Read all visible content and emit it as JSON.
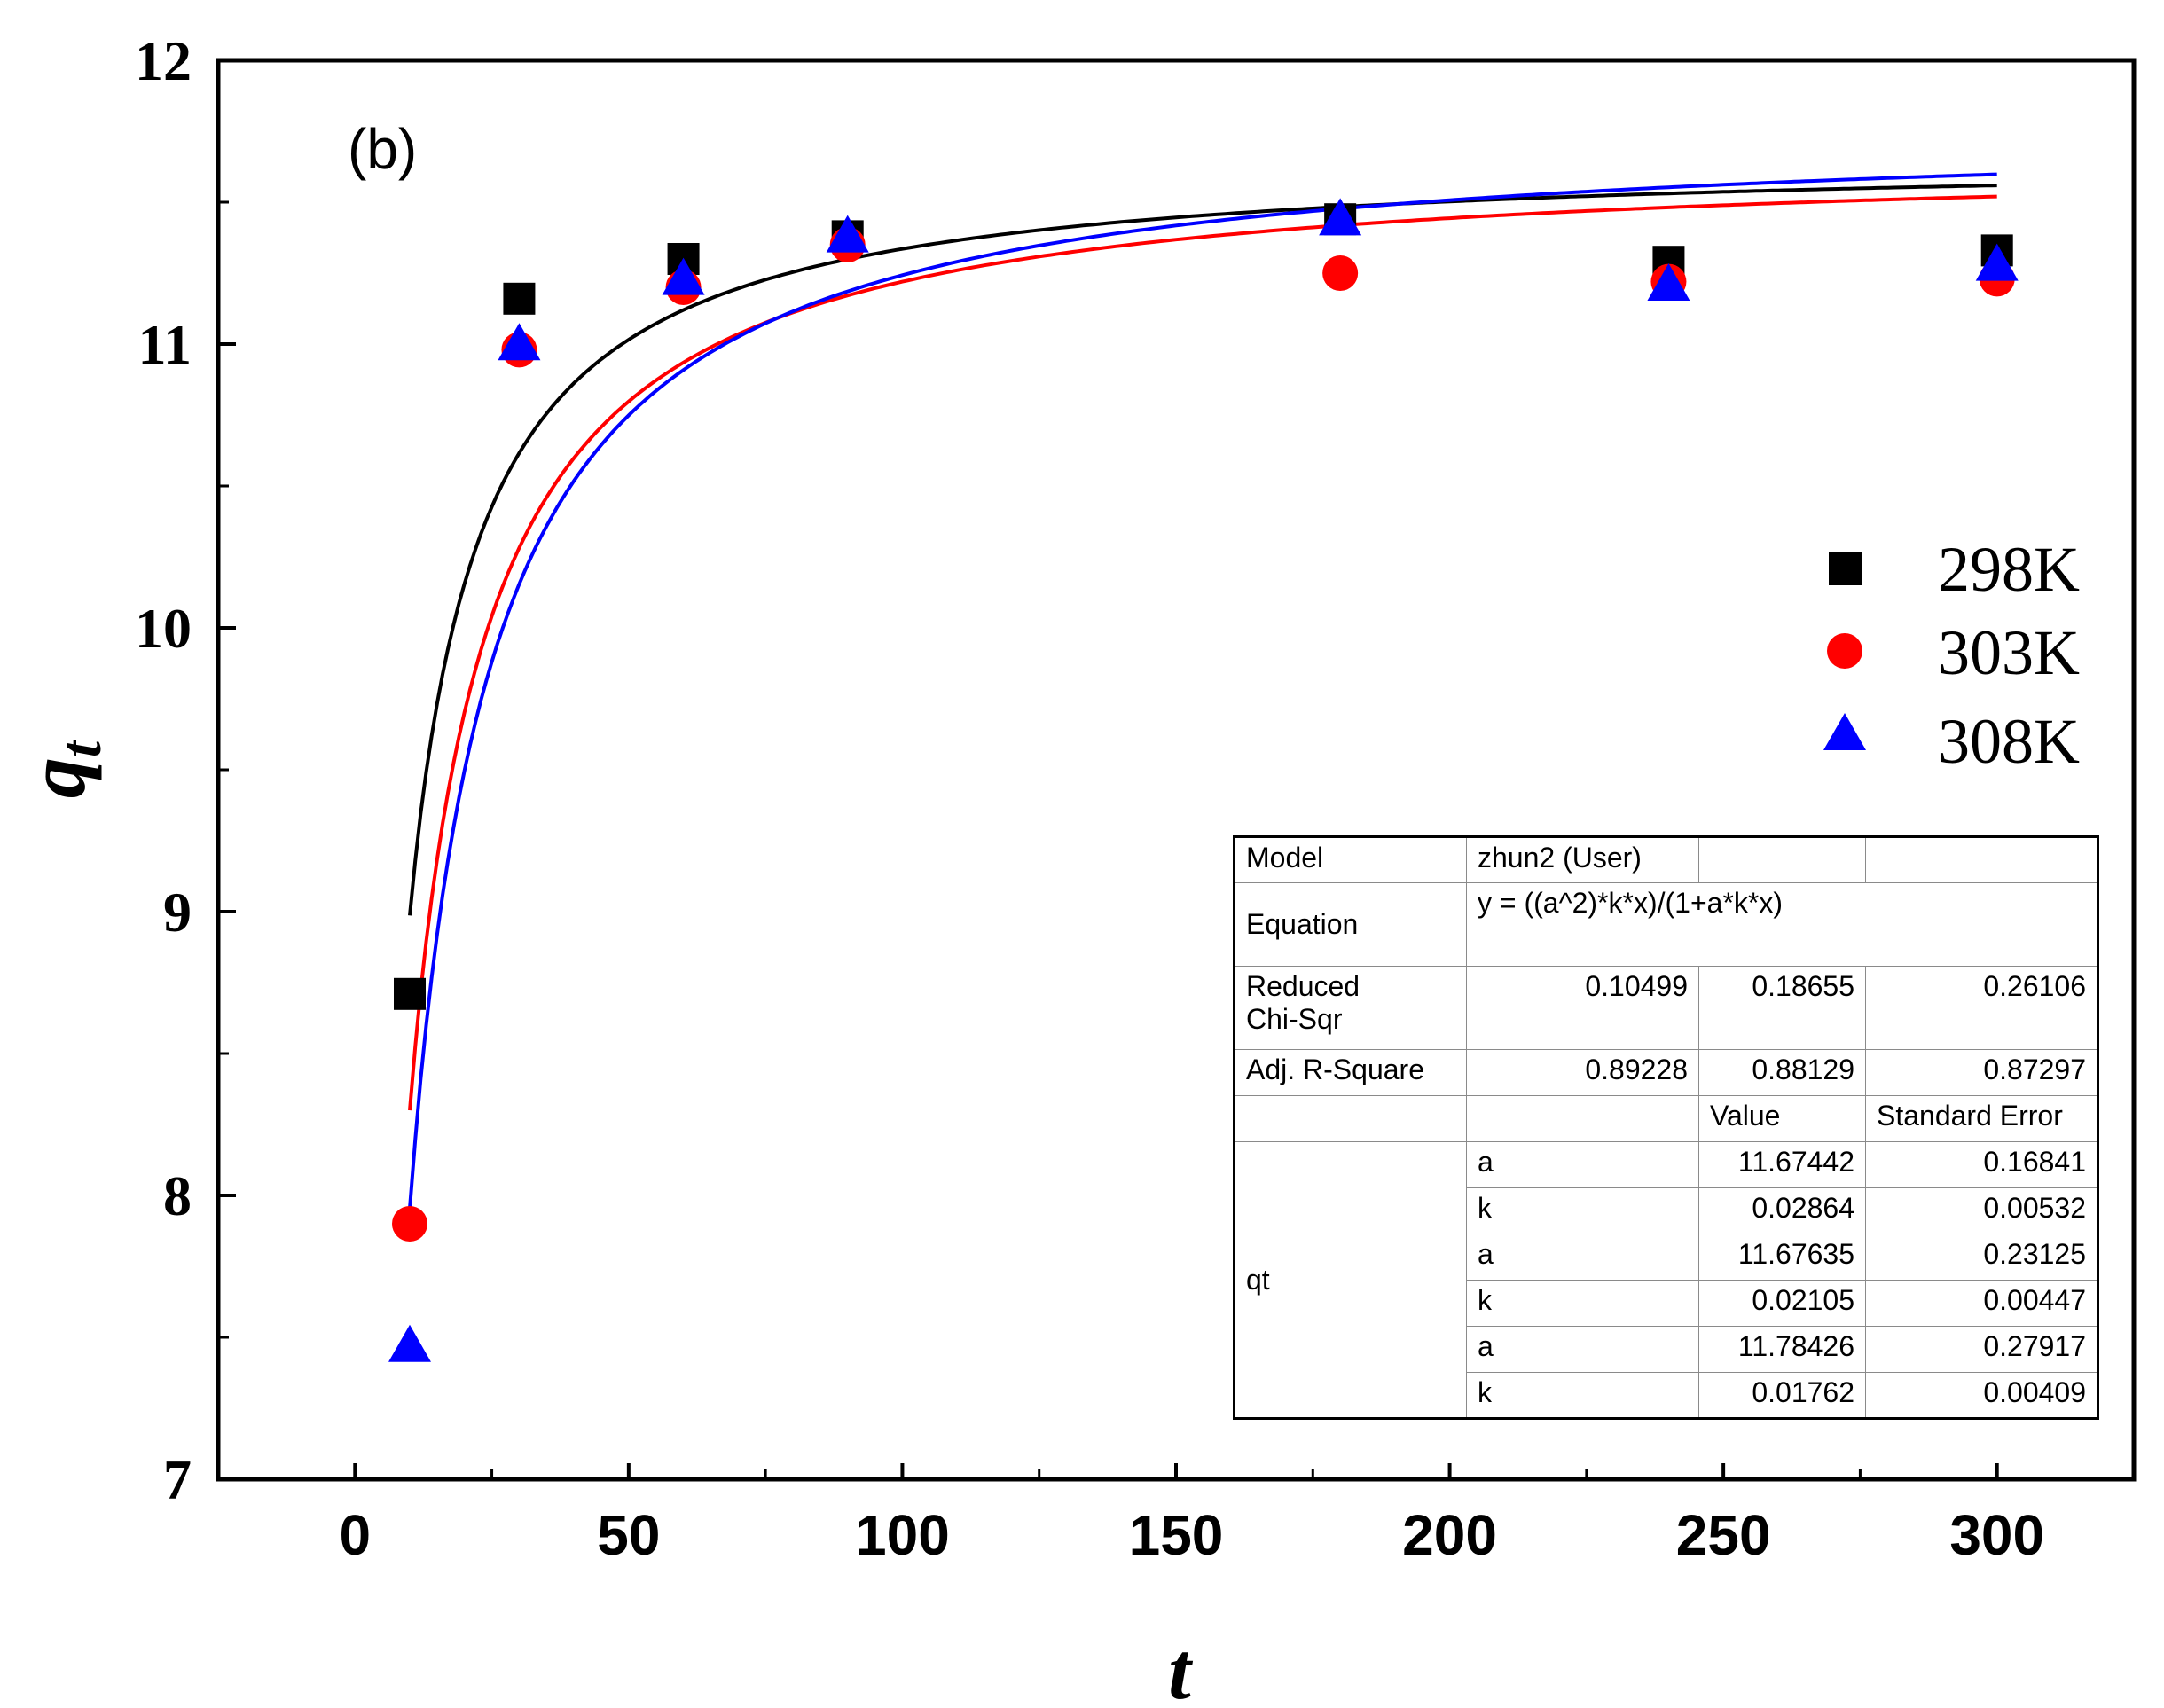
{
  "chart_data": {
    "type": "scatter",
    "panel_label": "(b)",
    "xlabel": "t",
    "ylabel_main": "q",
    "ylabel_sub": "t",
    "xlim": [
      -25,
      325
    ],
    "ylim": [
      7,
      12
    ],
    "xticks": [
      0,
      50,
      100,
      150,
      200,
      250,
      300
    ],
    "xtick_labels": [
      "0",
      "50",
      "100",
      "150",
      "200",
      "250",
      "300"
    ],
    "yticks": [
      7,
      8,
      9,
      10,
      11,
      12
    ],
    "ytick_labels": [
      "7",
      "8",
      "9",
      "10",
      "11",
      "12"
    ],
    "legend_position": "right",
    "series": [
      {
        "name": "298K",
        "marker": "square",
        "color": "#000000",
        "x": [
          10,
          30,
          60,
          90,
          180,
          240,
          300
        ],
        "y": [
          8.71,
          11.16,
          11.3,
          11.38,
          11.44,
          11.29,
          11.33
        ],
        "fit": {
          "a": 11.67442,
          "k": 0.02864
        }
      },
      {
        "name": "303K",
        "marker": "circle",
        "color": "#ff0000",
        "x": [
          10,
          30,
          60,
          90,
          180,
          240,
          300
        ],
        "y": [
          7.9,
          10.98,
          11.2,
          11.35,
          11.25,
          11.22,
          11.23
        ],
        "fit": {
          "a": 11.67635,
          "k": 0.02105
        }
      },
      {
        "name": "308K",
        "marker": "triangle",
        "color": "#0000ff",
        "x": [
          10,
          30,
          60,
          90,
          180,
          240,
          300
        ],
        "y": [
          7.46,
          10.99,
          11.22,
          11.37,
          11.43,
          11.2,
          11.27
        ],
        "fit": {
          "a": 11.78426,
          "k": 0.01762
        }
      }
    ]
  },
  "fit_table": {
    "model_label": "Model",
    "model_value": "zhun2 (User)",
    "equation_label": "Equation",
    "equation_value": "y = ((a^2)*k*x)/(1+a*k*x)",
    "chisq_label_1": "Reduced",
    "chisq_label_2": "Chi-Sqr",
    "chisq_values": [
      "0.10499",
      "0.18655",
      "0.26106"
    ],
    "r2_label": "Adj. R-Square",
    "r2_values": [
      "0.89228",
      "0.88129",
      "0.87297"
    ],
    "value_header": "Value",
    "error_header": "Standard Error",
    "param_group": "qt",
    "params": [
      {
        "name": "a",
        "value": "11.67442",
        "error": "0.16841"
      },
      {
        "name": "k",
        "value": "0.02864",
        "error": "0.00532"
      },
      {
        "name": "a",
        "value": "11.67635",
        "error": "0.23125"
      },
      {
        "name": "k",
        "value": "0.02105",
        "error": "0.00447"
      },
      {
        "name": "a",
        "value": "11.78426",
        "error": "0.27917"
      },
      {
        "name": "k",
        "value": "0.01762",
        "error": "0.00409"
      }
    ]
  }
}
